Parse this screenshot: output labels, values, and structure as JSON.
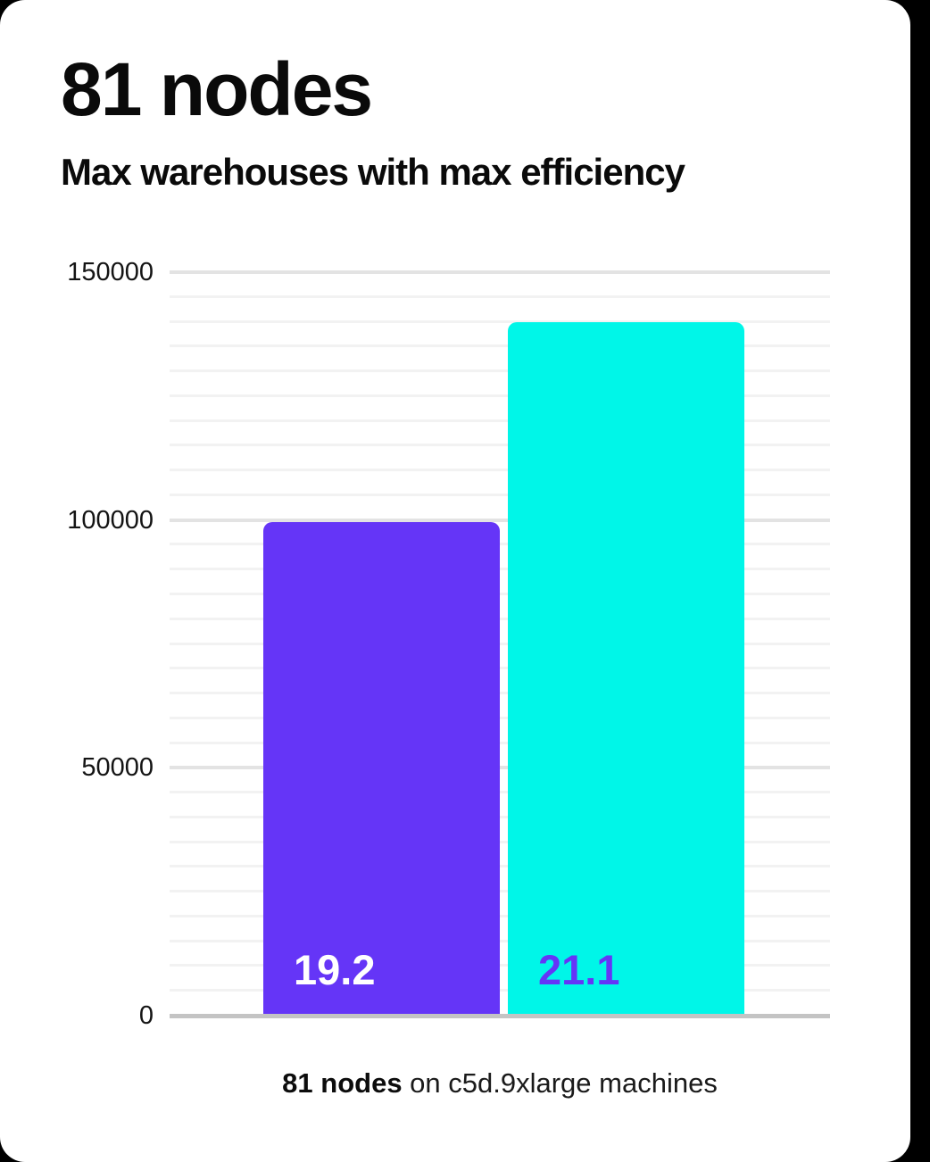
{
  "page": {
    "background": "#000000",
    "card_background": "#ffffff"
  },
  "header": {
    "title": "81 nodes",
    "subtitle": "Max warehouses with max efficiency"
  },
  "caption": {
    "bold": "81 nodes",
    "rest": " on c5d.9xlarge machines"
  },
  "chart_data": {
    "type": "bar",
    "title": "81 nodes",
    "subtitle": "Max warehouses with max efficiency",
    "caption": "81 nodes on c5d.9xlarge machines",
    "categories": [
      "19.2",
      "21.1"
    ],
    "values": [
      99500,
      140000
    ],
    "bar_colors": [
      "#6535f7",
      "#00f6e8"
    ],
    "bar_label_colors": [
      "#ffffff",
      "#6535f7"
    ],
    "ylim": [
      0,
      150000
    ],
    "yticks": [
      0,
      50000,
      100000,
      150000
    ],
    "ytick_labels": [
      "0",
      "50000",
      "100000",
      "150000"
    ],
    "minor_grid_step": 5000,
    "grid": "horizontal",
    "legend": "none",
    "xlabel": "",
    "ylabel": ""
  },
  "colors": {
    "major_grid": "#e3e3e3",
    "minor_grid": "#f2f2f2",
    "baseline": "#c4c4c4",
    "text": "#0a0a0a"
  }
}
